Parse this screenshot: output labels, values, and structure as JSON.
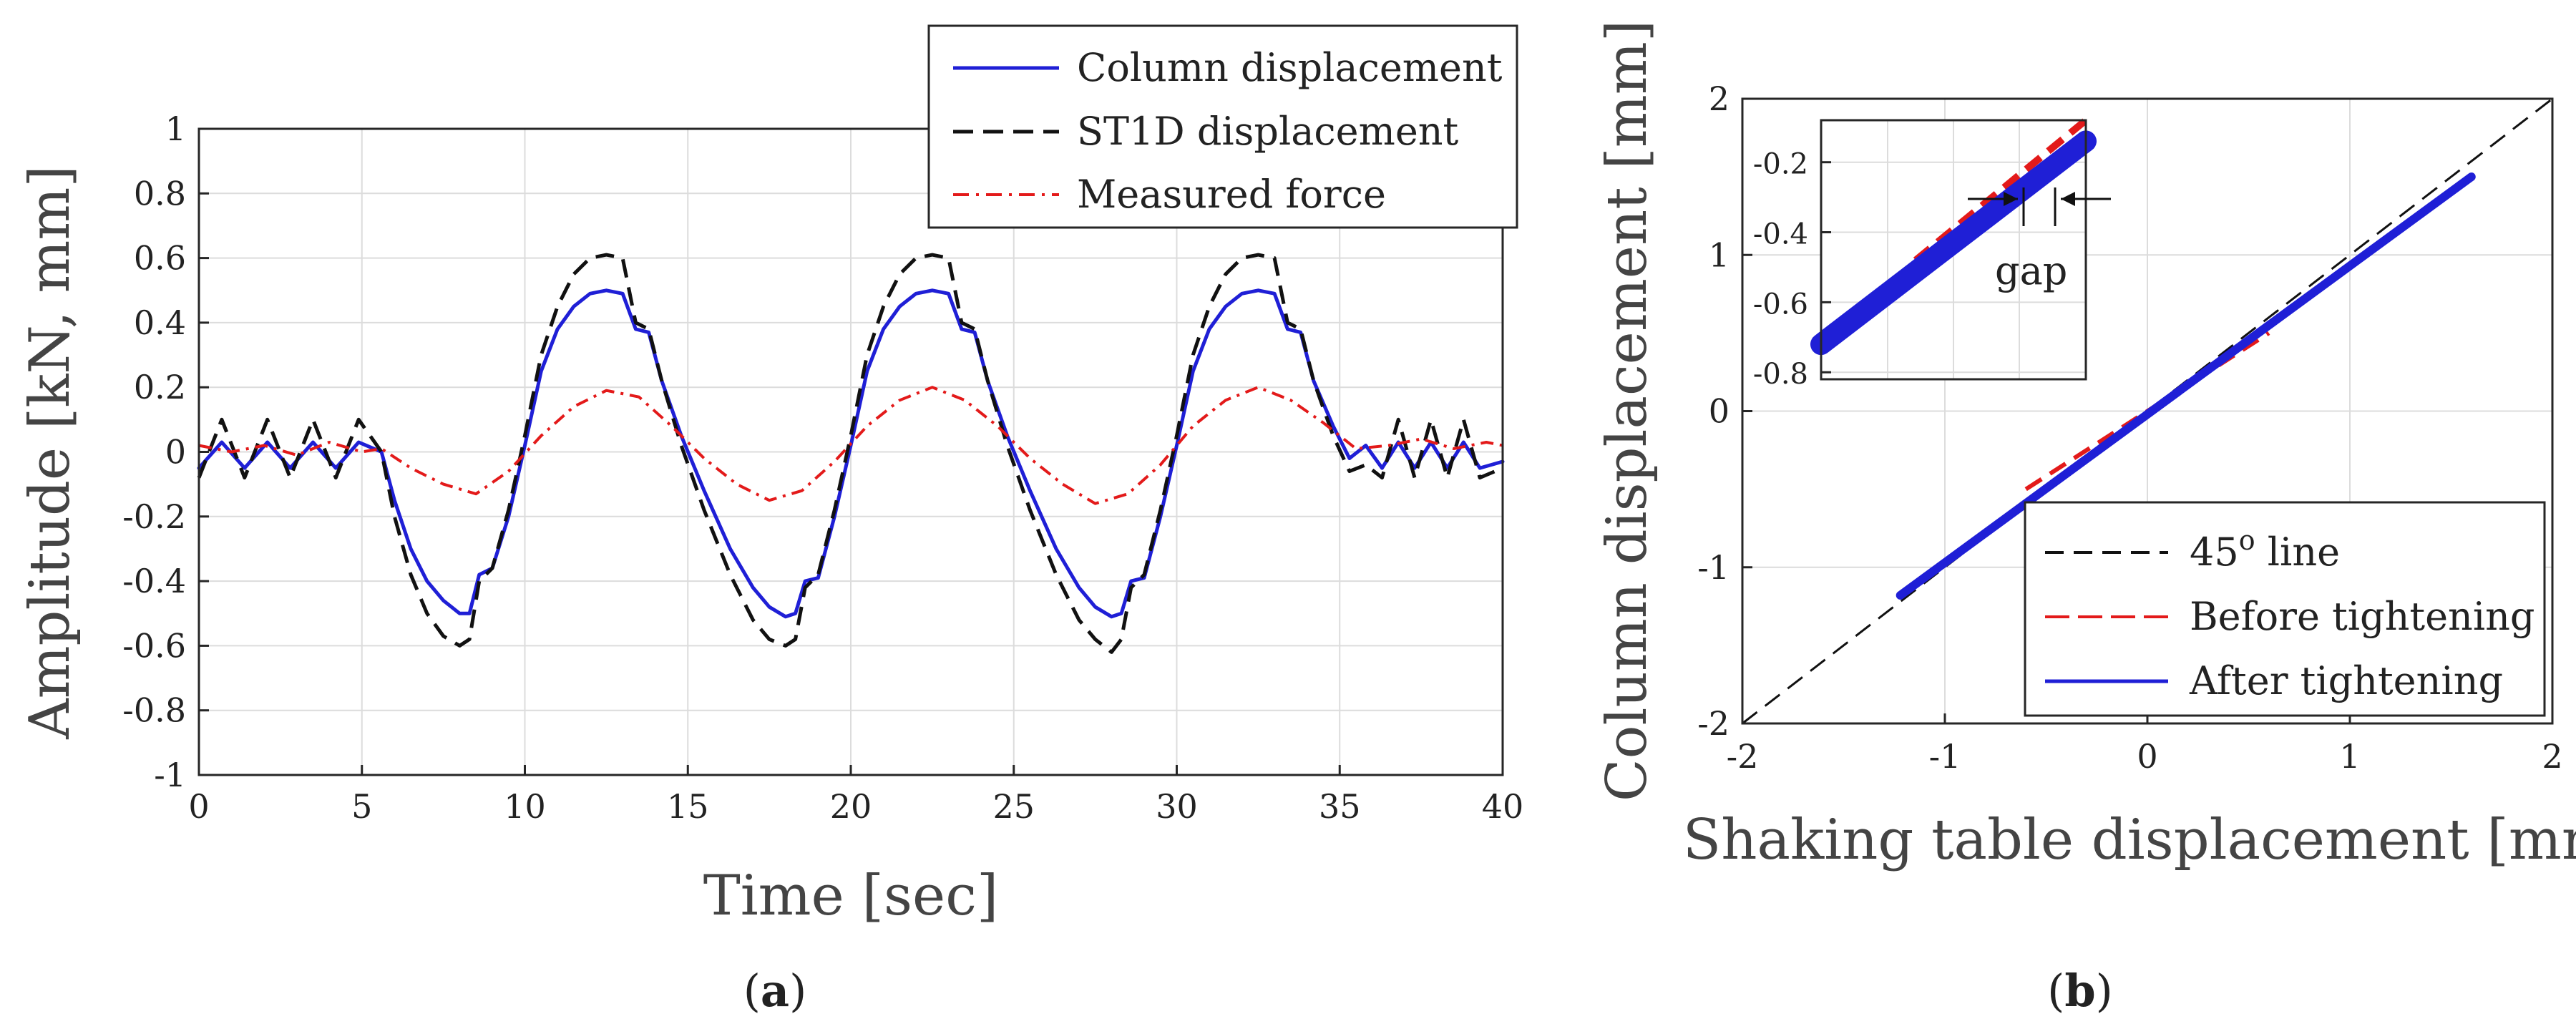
{
  "figure": {
    "panel_a_label": "a",
    "panel_b_label": "b"
  },
  "chart_data": [
    {
      "panel": "a",
      "type": "line",
      "title": "",
      "xlabel": "Time [sec]",
      "ylabel": "Amplitude [kN, mm]",
      "xlim": [
        0,
        40
      ],
      "ylim": [
        -1,
        1
      ],
      "xticks": [
        0,
        5,
        10,
        15,
        20,
        25,
        30,
        35,
        40
      ],
      "yticks": [
        -1,
        -0.8,
        -0.6,
        -0.4,
        -0.2,
        0,
        0.2,
        0.4,
        0.6,
        0.8,
        1
      ],
      "grid": true,
      "legend_position": "top-right",
      "series": [
        {
          "name": "Column displacement",
          "color": "#1f1fd6",
          "style": "solid",
          "x": [
            0,
            0.7,
            1.4,
            2.1,
            2.8,
            3.5,
            4.2,
            4.9,
            5.6,
            6,
            6.5,
            7,
            7.5,
            8,
            8.3,
            8.6,
            9,
            9.5,
            10,
            10.5,
            11,
            11.5,
            12,
            12.5,
            13,
            13.4,
            13.8,
            14.2,
            14.8,
            15.5,
            16.3,
            17,
            17.5,
            18,
            18.3,
            18.6,
            19,
            19.5,
            20,
            20.5,
            21,
            21.5,
            22,
            22.5,
            23,
            23.4,
            23.8,
            24.2,
            24.8,
            25.5,
            26.3,
            27,
            27.5,
            28,
            28.3,
            28.6,
            29,
            29.5,
            30,
            30.5,
            31,
            31.5,
            32,
            32.5,
            33,
            33.4,
            33.8,
            34.2,
            34.8,
            35.3,
            35.8,
            36.3,
            36.8,
            37.3,
            37.8,
            38.3,
            38.8,
            39.3,
            40
          ],
          "y": [
            -0.05,
            0.03,
            -0.05,
            0.03,
            -0.05,
            0.03,
            -0.05,
            0.03,
            0.0,
            -0.15,
            -0.3,
            -0.4,
            -0.46,
            -0.5,
            -0.5,
            -0.38,
            -0.36,
            -0.2,
            0.02,
            0.25,
            0.38,
            0.45,
            0.49,
            0.5,
            0.49,
            0.38,
            0.37,
            0.22,
            0.05,
            -0.12,
            -0.3,
            -0.42,
            -0.48,
            -0.51,
            -0.5,
            -0.4,
            -0.39,
            -0.2,
            0.02,
            0.25,
            0.38,
            0.45,
            0.49,
            0.5,
            0.49,
            0.38,
            0.37,
            0.22,
            0.05,
            -0.12,
            -0.3,
            -0.42,
            -0.48,
            -0.51,
            -0.5,
            -0.4,
            -0.39,
            -0.2,
            0.02,
            0.25,
            0.38,
            0.45,
            0.49,
            0.5,
            0.49,
            0.38,
            0.37,
            0.22,
            0.08,
            -0.02,
            0.02,
            -0.05,
            0.03,
            -0.05,
            0.03,
            -0.05,
            0.03,
            -0.05,
            -0.03
          ]
        },
        {
          "name": "ST1D displacement",
          "color": "#111111",
          "style": "dashed",
          "x": [
            0,
            0.7,
            1.4,
            2.1,
            2.8,
            3.5,
            4.2,
            4.9,
            5.6,
            6,
            6.5,
            7,
            7.5,
            8,
            8.3,
            8.6,
            9,
            9.5,
            10,
            10.5,
            11,
            11.5,
            12,
            12.5,
            13,
            13.4,
            13.8,
            14.2,
            14.8,
            15.5,
            16.3,
            17,
            17.5,
            18,
            18.3,
            18.6,
            19,
            19.5,
            20,
            20.5,
            21,
            21.5,
            22,
            22.5,
            23,
            23.4,
            23.8,
            24.2,
            24.8,
            25.5,
            26.3,
            27,
            27.5,
            28,
            28.3,
            28.6,
            29,
            29.5,
            30,
            30.5,
            31,
            31.5,
            32,
            32.5,
            33,
            33.4,
            33.8,
            34.2,
            34.8,
            35.3,
            35.8,
            36.3,
            36.8,
            37.3,
            37.8,
            38.3,
            38.8,
            39.3,
            40
          ],
          "y": [
            -0.08,
            0.1,
            -0.08,
            0.1,
            -0.08,
            0.1,
            -0.08,
            0.1,
            0.0,
            -0.2,
            -0.38,
            -0.5,
            -0.57,
            -0.6,
            -0.58,
            -0.4,
            -0.36,
            -0.18,
            0.05,
            0.3,
            0.45,
            0.55,
            0.6,
            0.61,
            0.6,
            0.4,
            0.38,
            0.22,
            0.02,
            -0.18,
            -0.38,
            -0.52,
            -0.58,
            -0.6,
            -0.58,
            -0.42,
            -0.38,
            -0.18,
            0.05,
            0.3,
            0.45,
            0.55,
            0.6,
            0.61,
            0.6,
            0.4,
            0.38,
            0.22,
            0.02,
            -0.18,
            -0.38,
            -0.52,
            -0.58,
            -0.62,
            -0.58,
            -0.42,
            -0.38,
            -0.18,
            0.05,
            0.3,
            0.45,
            0.55,
            0.6,
            0.61,
            0.6,
            0.4,
            0.38,
            0.22,
            0.05,
            -0.06,
            -0.04,
            -0.08,
            0.1,
            -0.08,
            0.1,
            -0.08,
            0.1,
            -0.08,
            -0.05
          ]
        },
        {
          "name": "Measured force",
          "color": "#e31a1a",
          "style": "dashdot",
          "x": [
            0,
            1,
            2,
            3,
            4,
            5,
            5.6,
            6.5,
            7.5,
            8.5,
            9.5,
            10.5,
            11.5,
            12.5,
            13.5,
            14.5,
            15.5,
            16.5,
            17.5,
            18.5,
            19.5,
            20.5,
            21.5,
            22.5,
            23.5,
            24.5,
            25.5,
            26.5,
            27.5,
            28.5,
            29.5,
            30.5,
            31.5,
            32.5,
            33.5,
            34.5,
            35.5,
            36.5,
            37.5,
            38.5,
            39.5,
            40
          ],
          "y": [
            0.02,
            0.0,
            0.02,
            -0.01,
            0.03,
            0.0,
            0.01,
            -0.05,
            -0.1,
            -0.13,
            -0.06,
            0.05,
            0.14,
            0.19,
            0.17,
            0.08,
            -0.02,
            -0.1,
            -0.15,
            -0.12,
            -0.03,
            0.08,
            0.16,
            0.2,
            0.16,
            0.08,
            -0.02,
            -0.1,
            -0.16,
            -0.13,
            -0.04,
            0.08,
            0.16,
            0.2,
            0.16,
            0.09,
            0.01,
            0.02,
            0.04,
            0.01,
            0.03,
            0.02
          ]
        }
      ]
    },
    {
      "panel": "b",
      "type": "line",
      "title": "",
      "xlabel": "Shaking table displacement [mm]",
      "ylabel": "Column displacement [mm]",
      "xlim": [
        -2,
        2
      ],
      "ylim": [
        -2,
        2
      ],
      "xticks": [
        -2,
        -1,
        0,
        1,
        2
      ],
      "yticks": [
        -2,
        -1,
        0,
        1,
        2
      ],
      "grid": true,
      "legend_position": "bottom-right",
      "series": [
        {
          "name": "45° line",
          "color": "#111111",
          "style": "dashed",
          "x": [
            -2,
            2
          ],
          "y": [
            -2,
            2
          ]
        },
        {
          "name": "Before tightening",
          "color": "#e31a1a",
          "style": "dashed",
          "x": [
            -0.6,
            0.6
          ],
          "y": [
            -0.5,
            0.5
          ]
        },
        {
          "name": "After tightening",
          "color": "#1f1fd6",
          "style": "solid",
          "x": [
            -1.22,
            1.6
          ],
          "y": [
            -1.18,
            1.5
          ]
        }
      ],
      "legend": {
        "line45_prefix": "45",
        "line45_sup": "o",
        "line45_suffix": " line",
        "before": "Before tightening",
        "after": "After tightening"
      },
      "inset": {
        "annotation": "gap",
        "yticks": [
          -0.2,
          -0.4,
          -0.6,
          -0.8
        ],
        "ylim": [
          -0.82,
          -0.08
        ],
        "xlim": [
          -1.0,
          -0.3
        ],
        "series": [
          {
            "name": "Before tightening",
            "color": "#e31a1a",
            "x": [
              -0.75,
              -0.3
            ],
            "y": [
              -0.48,
              -0.08
            ]
          },
          {
            "name": "After tightening",
            "color": "#1f1fd6",
            "x": [
              -1.0,
              -0.3
            ],
            "y": [
              -0.72,
              -0.14
            ]
          }
        ]
      }
    }
  ]
}
